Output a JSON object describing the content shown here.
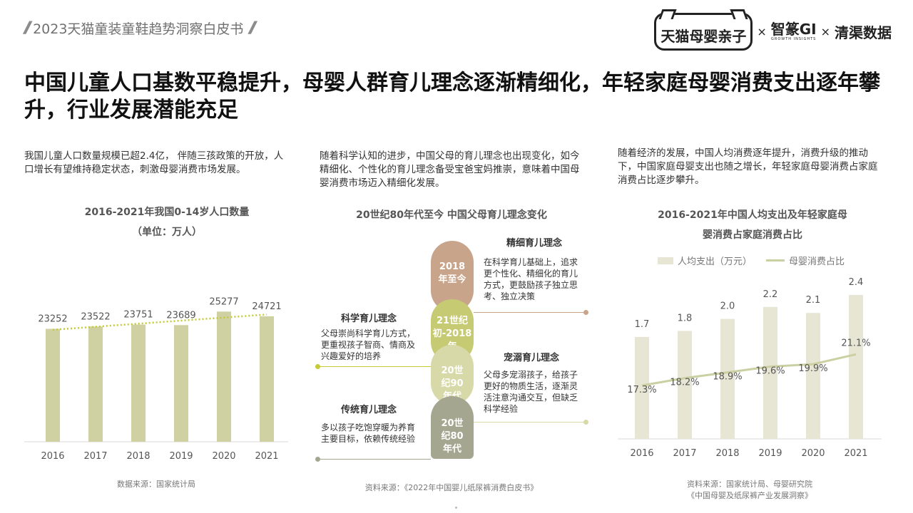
{
  "header": {
    "report_title": "2023天猫童装童鞋趋势洞察白皮书",
    "logo_tmall": "天猫母婴亲子",
    "logo_zhiji": "智篆GI",
    "logo_zhiji_sub": "GROWTH  INSIGHTS",
    "logo_qingqu": "清渠数据",
    "times": "×"
  },
  "headline": "中国儿童人口基数平稳提升，母婴人群育儿理念逐渐精细化，年轻家庭母婴消费支出逐年攀升，行业发展潜能充足",
  "left": {
    "desc": "我国儿童人口数量规模已超2.4亿， 伴随三孩政策的开放，人口增长有望维持稳定状态，刺激母婴消费市场发展。",
    "chart_title_1": "2016-2021年我国0-14岁人口数量",
    "chart_title_2": "（单位：万人）",
    "source": "数据来源：国家统计局"
  },
  "middle": {
    "desc": "随着科学认知的进步，中国父母的育儿理念也出现变化，如今精细化、个性化的育儿理念备受宝爸宝妈推崇，意味着中国母婴消费市场迈入精细化发展。",
    "chart_title": "20世纪80年代至今 中国父母育儿理念变化",
    "source": "资料来源：《2022年中国婴儿纸尿裤消费白皮书》",
    "stages": [
      {
        "pill": "2018年至今",
        "title": "精细育儿理念",
        "desc": "在科学育儿基础上，追求更个性化、精细化的育儿方式，更鼓励孩子独立思考、独立决策",
        "color": "#c8a48a"
      },
      {
        "pill": "21世纪初-2018年",
        "title": "科学育儿理念",
        "desc": "父母崇尚科学育儿方式，更重视孩子智商、情商及兴趣爱好的培养",
        "color": "#c6ca73"
      },
      {
        "pill": "20世纪90年代",
        "title": "宠溺育儿理念",
        "desc": "父母多宠溺孩子，给孩子更好的物质生活，逐渐灵活注意沟通交互，但缺乏科学经验",
        "color": "#d8d9a8"
      },
      {
        "pill": "20世纪80年代",
        "title": "传统育儿理念",
        "desc": "多以孩子吃饱穿暖为养育主要目标，依赖传统经验",
        "color": "#a5a690"
      }
    ]
  },
  "right": {
    "desc": "随着经济的发展，中国人均消费逐年提升，消费升级的推动下，中国家庭母婴支出也随之增长，年轻家庭母婴消费占家庭消费占比逐步攀升。",
    "chart_title_1": "2016-2021年中国人均支出及年轻家庭母",
    "chart_title_2": "婴消费占家庭消费占比",
    "legend_bar": "人均支出（万元）",
    "legend_line": "母婴消费占比",
    "source_1": "资料来源：国家统计局、母婴研究院",
    "source_2": "《中国母婴及纸尿裤产业发展洞察》"
  },
  "chart_data": [
    {
      "type": "bar",
      "title": "2016-2021年我国0-14岁人口数量",
      "subtitle": "（单位：万人）",
      "categories": [
        "2016",
        "2017",
        "2018",
        "2019",
        "2020",
        "2021"
      ],
      "values": [
        23252,
        23522,
        23751,
        23689,
        25277,
        24721
      ],
      "trendline": "linear",
      "colors": {
        "bar": "#cfd1a2",
        "trend": "#c4ca35"
      }
    },
    {
      "type": "bar",
      "title": "2016-2021年中国人均支出及年轻家庭母婴消费占家庭消费占比",
      "categories": [
        "2016",
        "2017",
        "2018",
        "2019",
        "2020",
        "2021"
      ],
      "series": [
        {
          "name": "人均支出（万元）",
          "type": "bar",
          "values": [
            1.7,
            1.8,
            2.0,
            2.2,
            2.1,
            2.4
          ],
          "labels": [
            "1.7",
            "1.8",
            "2.0",
            "2.2",
            "2.1",
            "2.4"
          ]
        },
        {
          "name": "母婴消费占比",
          "type": "line",
          "values": [
            17.3,
            18.2,
            18.9,
            19.6,
            19.9,
            21.1
          ],
          "labels": [
            "17.3%",
            "18.2%",
            "18.9%",
            "19.6%",
            "19.9%",
            "21.1%"
          ]
        }
      ],
      "colors": {
        "bar": "#e7e6d5",
        "line": "#cbd0a2"
      }
    }
  ]
}
